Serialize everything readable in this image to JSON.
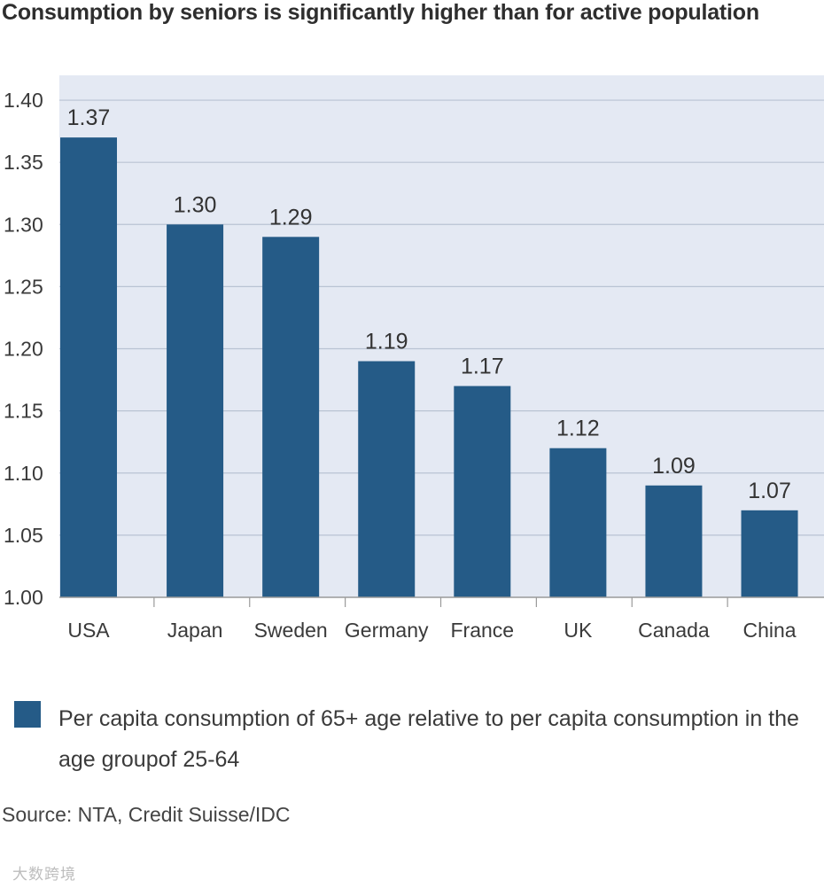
{
  "title": "Consumption by seniors is significantly higher than for active population",
  "colors": {
    "bar": "#255b87",
    "plot_background": "#e4e9f3",
    "gridline": "#b9c3d3",
    "axis": "#9a9a9a"
  },
  "chart_data": {
    "type": "bar",
    "title": "Consumption by seniors is significantly higher than for active population",
    "categories": [
      "USA",
      "Japan",
      "Sweden",
      "Germany",
      "France",
      "UK",
      "Canada",
      "China"
    ],
    "series": [
      {
        "name": "Per capita consumption of 65+ age relative to per capita consumption in the age groupof 25-64",
        "values": [
          1.37,
          1.3,
          1.29,
          1.19,
          1.17,
          1.12,
          1.09,
          1.07
        ],
        "value_labels": [
          "1.37",
          "1.30",
          "1.29",
          "1.19",
          "1.17",
          "1.12",
          "1.09",
          "1.07"
        ]
      }
    ],
    "ylim": [
      1.0,
      1.42
    ],
    "yticks": [
      1.0,
      1.05,
      1.1,
      1.15,
      1.2,
      1.25,
      1.3,
      1.35,
      1.4
    ],
    "ytick_labels": [
      "1.00",
      "1.05",
      "1.10",
      "1.15",
      "1.20",
      "1.25",
      "1.30",
      "1.35",
      "1.40"
    ],
    "xlabel": "",
    "ylabel": "",
    "grid": true,
    "legend_position": "bottom"
  },
  "legend": {
    "label": "Per capita consumption of 65+ age relative to per capita consumption in the age groupof 25-64"
  },
  "source": "Source: NTA, Credit Suisse/IDC",
  "watermark": "大数跨境"
}
